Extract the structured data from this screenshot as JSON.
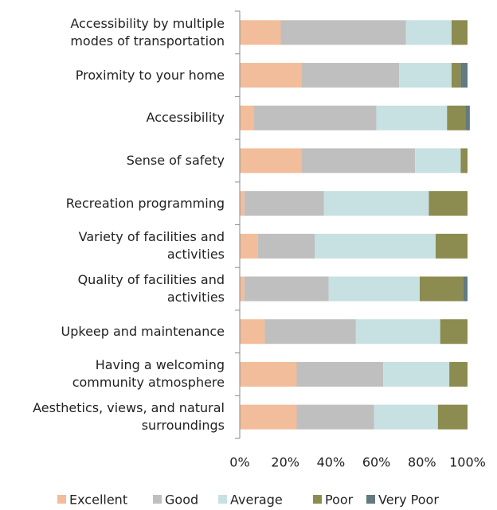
{
  "chart_data": {
    "type": "stacked_barh",
    "categories": [
      "Accessibility by multiple\nmodes of transportation",
      "Proximity to your home",
      "Accessibility",
      "Sense of safety",
      "Recreation programming",
      "Variety of facilities and\nactivities",
      "Quality of facilities and\nactivities",
      "Upkeep and maintenance",
      "Having a welcoming\ncommunity atmosphere",
      "Aesthetics, views, and natural\nsurroundings"
    ],
    "series": [
      {
        "name": "Excellent",
        "color": "#f2bd9a",
        "values": [
          18,
          27,
          6,
          27,
          2,
          8,
          2,
          11,
          25,
          25
        ]
      },
      {
        "name": "Good",
        "color": "#bfbfbf",
        "values": [
          55,
          43,
          54,
          50,
          35,
          25,
          37,
          40,
          38,
          34
        ]
      },
      {
        "name": "Average",
        "color": "#c7e0e1",
        "values": [
          20,
          23,
          31,
          20,
          46,
          53,
          40,
          37,
          29,
          28
        ]
      },
      {
        "name": "Poor",
        "color": "#8c8c50",
        "values": [
          7,
          4,
          8,
          3,
          17,
          14,
          19,
          12,
          8,
          13
        ]
      },
      {
        "name": "Very Poor",
        "color": "#627a80",
        "values": [
          0,
          3,
          2,
          0,
          0,
          0,
          2,
          0,
          0,
          0
        ]
      }
    ],
    "xlim": [
      0,
      100
    ],
    "xticks": [
      {
        "value": 0,
        "label": "0%"
      },
      {
        "value": 20,
        "label": "20%"
      },
      {
        "value": 40,
        "label": "40%"
      },
      {
        "value": 60,
        "label": "60%"
      },
      {
        "value": 80,
        "label": "80%"
      },
      {
        "value": 100,
        "label": "100%"
      }
    ],
    "legend": "bottom"
  }
}
